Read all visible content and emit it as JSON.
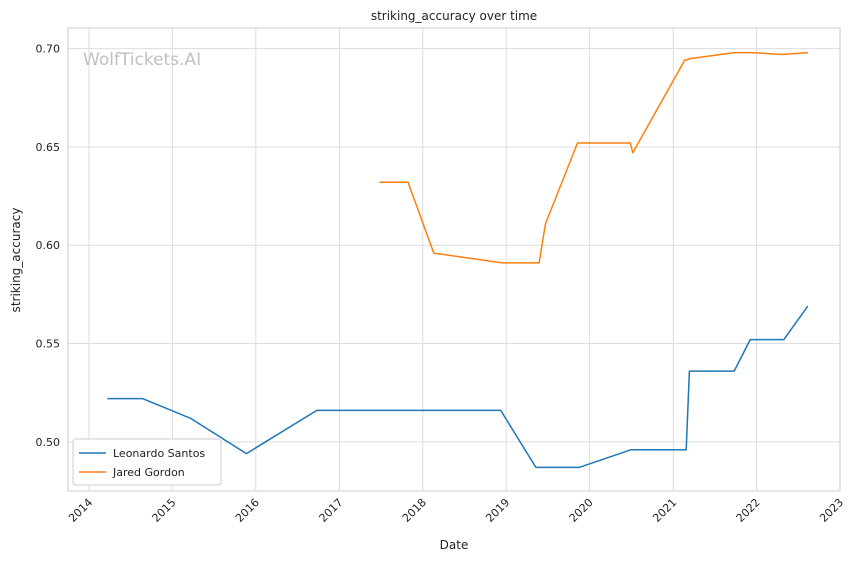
{
  "chart_data": {
    "type": "line",
    "title": "striking_accuracy over time",
    "xlabel": "Date",
    "ylabel": "striking_accuracy",
    "watermark": "WolfTickets.AI",
    "xlim": [
      "2013-10-01",
      "2023-01-01"
    ],
    "ylim": [
      0.475,
      0.7105
    ],
    "x_ticks": [
      "2014",
      "2015",
      "2016",
      "2017",
      "2018",
      "2019",
      "2020",
      "2021",
      "2022",
      "2023"
    ],
    "y_ticks": [
      "0.50",
      "0.55",
      "0.60",
      "0.65",
      "0.70"
    ],
    "grid": true,
    "legend_position": "lower-left",
    "series": [
      {
        "name": "Leonardo Santos",
        "color": "#1f77b4",
        "points": [
          [
            "2014-03-22",
            0.522
          ],
          [
            "2014-08-23",
            0.522
          ],
          [
            "2015-03-21",
            0.512
          ],
          [
            "2015-11-21",
            0.494
          ],
          [
            "2016-09-24",
            0.516
          ],
          [
            "2018-12-08",
            0.516
          ],
          [
            "2019-05-11",
            0.487
          ],
          [
            "2019-11-16",
            0.487
          ],
          [
            "2020-07-01",
            0.496
          ],
          [
            "2021-02-27",
            0.496
          ],
          [
            "2021-03-13",
            0.536
          ],
          [
            "2021-09-25",
            0.536
          ],
          [
            "2021-12-04",
            0.552
          ],
          [
            "2022-04-30",
            0.552
          ],
          [
            "2022-08-13",
            0.569
          ]
        ]
      },
      {
        "name": "Jared Gordon",
        "color": "#ff7f0e",
        "points": [
          [
            "2017-06-25",
            0.632
          ],
          [
            "2017-10-28",
            0.632
          ],
          [
            "2018-02-18",
            0.596
          ],
          [
            "2018-12-15",
            0.591
          ],
          [
            "2019-05-25",
            0.591
          ],
          [
            "2019-06-22",
            0.611
          ],
          [
            "2019-11-09",
            0.652
          ],
          [
            "2020-06-27",
            0.652
          ],
          [
            "2020-07-08",
            0.647
          ],
          [
            "2021-02-20",
            0.694
          ],
          [
            "2021-03-20",
            0.695
          ],
          [
            "2021-09-25",
            0.698
          ],
          [
            "2021-12-11",
            0.698
          ],
          [
            "2022-04-23",
            0.697
          ],
          [
            "2022-08-13",
            0.698
          ]
        ]
      }
    ]
  }
}
